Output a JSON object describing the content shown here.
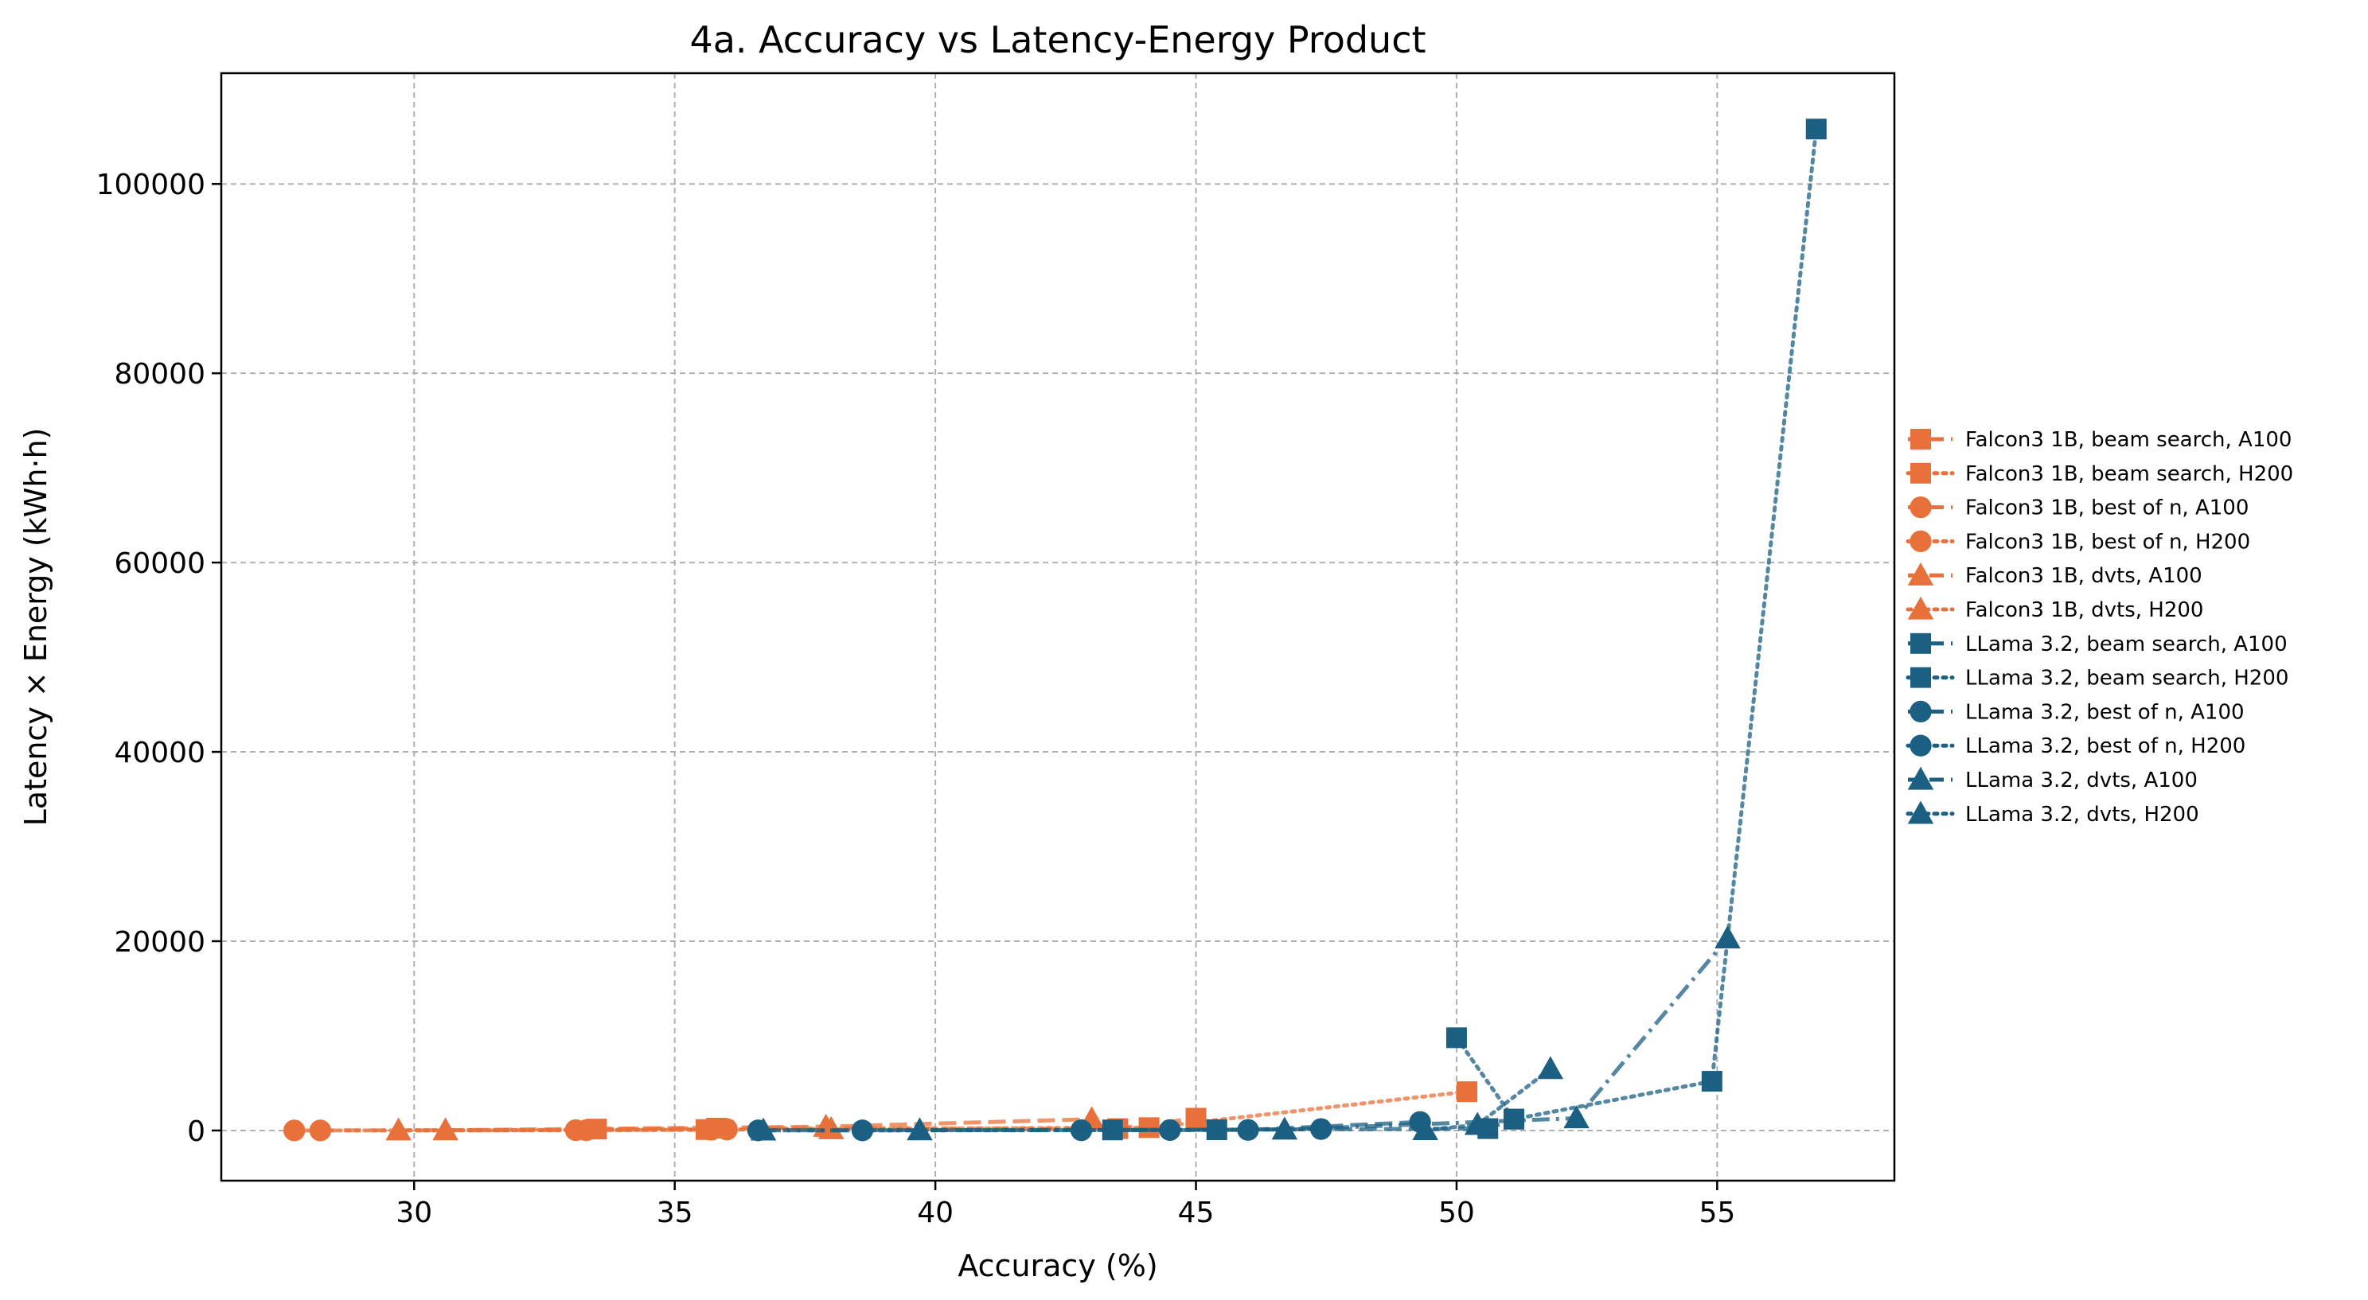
{
  "chart_data": {
    "type": "line",
    "title": "4a. Accuracy vs Latency-Energy Product",
    "xlabel": "Accuracy (%)",
    "ylabel": "Latency × Energy (kWh·h)",
    "xlim": [
      26.3,
      58.4
    ],
    "ylim": [
      -5300,
      111700
    ],
    "xticks": [
      30,
      35,
      40,
      45,
      50,
      55
    ],
    "yticks": [
      0,
      20000,
      40000,
      60000,
      80000,
      100000
    ],
    "grid": true,
    "legend_position": "right, outside plot",
    "colors": {
      "falcon": "#e8703a",
      "llama": "#1b5f82"
    },
    "series": [
      {
        "name": "Falcon3 1B, beam search, A100",
        "marker": "square",
        "linestyle": "dashed",
        "color": "#e8703a",
        "points": [
          [
            33.5,
            150
          ],
          [
            35.8,
            250
          ],
          [
            43.5,
            200
          ],
          [
            45.0,
            1300
          ]
        ]
      },
      {
        "name": "Falcon3 1B, beam search, H200",
        "marker": "square",
        "linestyle": "dotted",
        "color": "#e8703a",
        "points": [
          [
            35.6,
            100
          ],
          [
            44.1,
            300
          ],
          [
            50.2,
            4100
          ]
        ]
      },
      {
        "name": "Falcon3 1B, best of n, A100",
        "marker": "circle",
        "linestyle": "dashed",
        "color": "#e8703a",
        "points": [
          [
            27.7,
            5
          ],
          [
            33.1,
            40
          ],
          [
            35.7,
            80
          ],
          [
            36.0,
            150
          ]
        ]
      },
      {
        "name": "Falcon3 1B, best of n, H200",
        "marker": "circle",
        "linestyle": "dotted",
        "color": "#e8703a",
        "points": [
          [
            28.2,
            5
          ],
          [
            33.3,
            30
          ],
          [
            36.0,
            100
          ]
        ]
      },
      {
        "name": "Falcon3 1B, dvts, A100",
        "marker": "triangle",
        "linestyle": "dashed",
        "color": "#e8703a",
        "points": [
          [
            30.6,
            30
          ],
          [
            37.9,
            400
          ],
          [
            43.0,
            1200
          ]
        ]
      },
      {
        "name": "Falcon3 1B, dvts, H200",
        "marker": "triangle",
        "linestyle": "dotted",
        "color": "#e8703a",
        "points": [
          [
            29.7,
            20
          ],
          [
            38.0,
            150
          ]
        ]
      },
      {
        "name": "LLama 3.2, beam search, A100",
        "marker": "square",
        "linestyle": "dashed",
        "color": "#1b5f82",
        "points": [
          [
            43.4,
            60
          ],
          [
            45.4,
            80
          ],
          [
            50.6,
            200
          ],
          [
            51.1,
            1200
          ]
        ]
      },
      {
        "name": "LLama 3.2, beam search, H200",
        "marker": "square",
        "linestyle": "dotted",
        "color": "#1b5f82",
        "points": [
          [
            50.0,
            9800
          ],
          [
            51.1,
            1200
          ],
          [
            54.9,
            5200
          ],
          [
            56.9,
            105800
          ]
        ]
      },
      {
        "name": "LLama 3.2, best of n, A100",
        "marker": "circle",
        "linestyle": "dashed",
        "color": "#1b5f82",
        "points": [
          [
            36.6,
            10
          ],
          [
            42.8,
            30
          ],
          [
            46.0,
            60
          ],
          [
            49.3,
            900
          ]
        ]
      },
      {
        "name": "LLama 3.2, best of n, H200",
        "marker": "circle",
        "linestyle": "dotted",
        "color": "#1b5f82",
        "points": [
          [
            38.6,
            10
          ],
          [
            44.5,
            50
          ],
          [
            47.4,
            150
          ]
        ]
      },
      {
        "name": "LLama 3.2, dvts, A100",
        "marker": "triangle",
        "linestyle": "dashdot",
        "color": "#1b5f82",
        "points": [
          [
            36.7,
            10
          ],
          [
            39.7,
            30
          ],
          [
            46.7,
            100
          ],
          [
            52.3,
            1300
          ],
          [
            55.2,
            20300
          ]
        ]
      },
      {
        "name": "LLama 3.2, dvts, H200",
        "marker": "triangle",
        "linestyle": "dotted",
        "color": "#1b5f82",
        "points": [
          [
            49.4,
            50
          ],
          [
            50.4,
            600
          ],
          [
            51.8,
            6500
          ]
        ]
      }
    ]
  }
}
